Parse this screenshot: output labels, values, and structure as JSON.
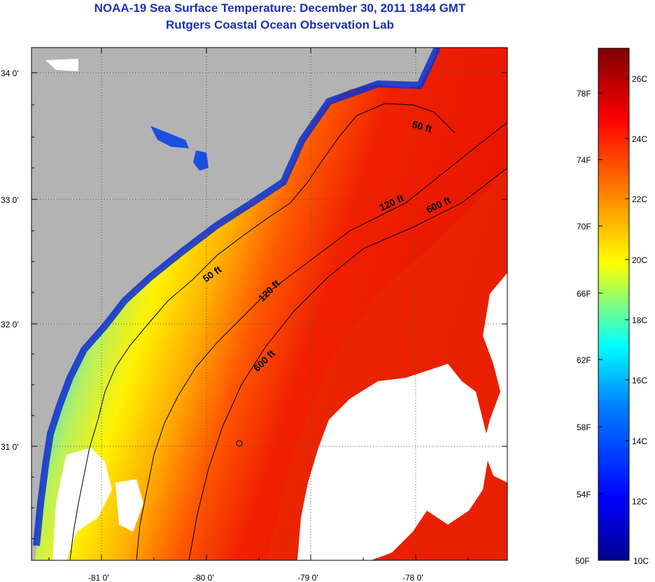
{
  "header": {
    "title": "NOAA-19 Sea Surface Temperature:  December 30, 2011 1844 GMT",
    "subtitle": "Rutgers Coastal Ocean Observation Lab"
  },
  "map": {
    "lon_labels": [
      "-81 0'",
      "-80 0'",
      "-79 0'",
      "-78 0'"
    ],
    "lat_labels": [
      "34 0'",
      "33 0'",
      "32 0'",
      "31 0'"
    ],
    "isobath_labels": [
      "50 ft",
      "120 ft",
      "600 ft",
      "50 ft",
      "120 ft",
      "600 ft"
    ],
    "colors": {
      "land": "#b3b3b3",
      "cloud": "#ffffff",
      "frame": "#000000"
    }
  },
  "colorbar": {
    "fahrenheit_labels": [
      "78F",
      "74F",
      "70F",
      "66F",
      "62F",
      "58F",
      "54F",
      "50F"
    ],
    "celsius_labels": [
      "26C",
      "24C",
      "22C",
      "20C",
      "18C",
      "16C",
      "14C",
      "12C",
      "10C"
    ],
    "stops": [
      "#00008f",
      "#0000ff",
      "#007fff",
      "#00ffff",
      "#7fff7f",
      "#ffff00",
      "#ff7f00",
      "#ff0000",
      "#7f0000"
    ]
  }
}
